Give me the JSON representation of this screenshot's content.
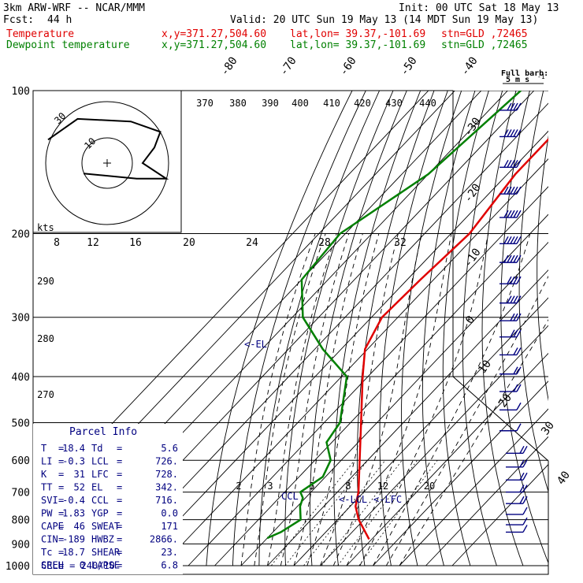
{
  "header": {
    "model": "3km ARW-WRF -- NCAR/MMM",
    "init": "Init: 00 UTC Sat 18 May 13",
    "fcst_label": "Fcst:",
    "fcst_value": "44 h",
    "valid": "Valid: 20 UTC Sun 19 May 13 (14 MDT Sun 19 May 13)",
    "lines": [
      {
        "name": "Temperature",
        "xy": "x,y=371.27,504.60",
        "latlon": "lat,lon= 39.37,-101.69",
        "stn": "stn=GLD ,72465",
        "color": "#e00000"
      },
      {
        "name": "Dewpoint temperature",
        "xy": "x,y=371.27,504.60",
        "latlon": "lat,lon= 39.37,-101.69",
        "stn": "stn=GLD ,72465",
        "color": "#008000"
      }
    ]
  },
  "barb_legend": {
    "title": "Full barb:",
    "value": "5 m s",
    "exp": "-1"
  },
  "parcel_info": {
    "title": "Parcel Info",
    "rows": [
      [
        "T",
        "18.4",
        "Td",
        "5.6"
      ],
      [
        "LI",
        "-0.3",
        "LCL",
        "726."
      ],
      [
        "K",
        "31",
        "LFC",
        "728."
      ],
      [
        "TT",
        "52",
        "EL",
        "342."
      ],
      [
        "SVI",
        "-0.4",
        "CCL",
        "716."
      ],
      [
        "PW",
        "1.83",
        "YGP",
        "0.0"
      ],
      [
        "CAPE",
        "46",
        "SWEAT",
        "171"
      ],
      [
        "CIN",
        "-189",
        "HWBZ",
        "2866."
      ],
      [
        "Tc",
        "18.7",
        "SHEAR",
        "23."
      ],
      [
        "SREH",
        "0",
        "LAPSE",
        "6.8"
      ]
    ],
    "cell": "CELL = 240/10"
  },
  "hodograph": {
    "units": "kts",
    "ring_labels": [
      "30",
      "10"
    ],
    "speed_tick_labels": [
      "8",
      "12",
      "16",
      "20",
      "24",
      "28",
      "32"
    ]
  },
  "annotations": {
    "el": "<-EL",
    "lcl": "<-LCL",
    "lfc": "<-LFC",
    "ccl": "CCL"
  },
  "colors": {
    "temperature": "#e00000",
    "dewpoint": "#008000",
    "barbs": "#000080",
    "annotation": "#000080"
  },
  "chart_data": {
    "type": "line",
    "title": "",
    "pressure_levels": [
      100,
      200,
      300,
      400,
      500,
      600,
      700,
      800,
      900,
      1000
    ],
    "isotherm_labels": [
      "-80",
      "-70",
      "-60",
      "-50",
      "-40",
      "-30",
      "-20",
      "-10",
      "0",
      "10",
      "20",
      "30",
      "40"
    ],
    "theta_labels": [
      "370",
      "380",
      "390",
      "400",
      "410",
      "420",
      "430",
      "440"
    ],
    "theta_left_labels": [
      "290",
      "280",
      "270"
    ],
    "mixing_ratio_labels": [
      "2",
      "3",
      "5",
      "8",
      "12",
      "20"
    ],
    "series": [
      {
        "name": "Temperature",
        "color": "#e00000",
        "points": [
          [
            100,
            -57
          ],
          [
            150,
            -57
          ],
          [
            200,
            -53
          ],
          [
            250,
            -55
          ],
          [
            300,
            -56
          ],
          [
            350,
            -51
          ],
          [
            400,
            -42
          ],
          [
            500,
            -26
          ],
          [
            600,
            -13
          ],
          [
            700,
            -2
          ],
          [
            750,
            2
          ],
          [
            800,
            8
          ],
          [
            850,
            15
          ],
          [
            880,
            19
          ]
        ]
      },
      {
        "name": "Dewpoint temperature",
        "color": "#008000",
        "points": [
          [
            100,
            -85
          ],
          [
            150,
            -90
          ],
          [
            200,
            -102
          ],
          [
            250,
            -100
          ],
          [
            300,
            -86
          ],
          [
            350,
            -67
          ],
          [
            400,
            -48
          ],
          [
            500,
            -34
          ],
          [
            550,
            -32
          ],
          [
            600,
            -24
          ],
          [
            650,
            -21
          ],
          [
            700,
            -24
          ],
          [
            720,
            -21
          ],
          [
            750,
            -19
          ],
          [
            800,
            -14
          ],
          [
            850,
            -17
          ],
          [
            875,
            -20
          ]
        ]
      }
    ],
    "wind_barbs": [
      {
        "p": 110,
        "speed_ms": 20
      },
      {
        "p": 125,
        "speed_ms": 25
      },
      {
        "p": 145,
        "speed_ms": 25
      },
      {
        "p": 165,
        "speed_ms": 25
      },
      {
        "p": 185,
        "speed_ms": 25
      },
      {
        "p": 210,
        "speed_ms": 25
      },
      {
        "p": 230,
        "speed_ms": 25
      },
      {
        "p": 255,
        "speed_ms": 20
      },
      {
        "p": 280,
        "speed_ms": 20
      },
      {
        "p": 305,
        "speed_ms": 15
      },
      {
        "p": 330,
        "speed_ms": 15
      },
      {
        "p": 360,
        "speed_ms": 10
      },
      {
        "p": 395,
        "speed_ms": 10
      },
      {
        "p": 430,
        "speed_ms": 10
      },
      {
        "p": 470,
        "speed_ms": 5
      },
      {
        "p": 520,
        "speed_ms": 5
      },
      {
        "p": 580,
        "speed_ms": 10
      },
      {
        "p": 620,
        "speed_ms": 10
      },
      {
        "p": 660,
        "speed_ms": 10
      },
      {
        "p": 700,
        "speed_ms": 10
      },
      {
        "p": 740,
        "speed_ms": 10
      },
      {
        "p": 780,
        "speed_ms": 5
      },
      {
        "p": 820,
        "speed_ms": 5
      },
      {
        "p": 850,
        "speed_ms": 5
      }
    ],
    "hodograph_path": [
      [
        -10,
        -9
      ],
      [
        -5,
        -17
      ],
      [
        4,
        -16
      ],
      [
        9,
        -12
      ],
      [
        8,
        -6
      ],
      [
        6,
        0
      ],
      [
        10,
        6
      ],
      [
        5,
        6
      ],
      [
        -4,
        4
      ]
    ],
    "xlabel": "",
    "ylabel": ""
  }
}
